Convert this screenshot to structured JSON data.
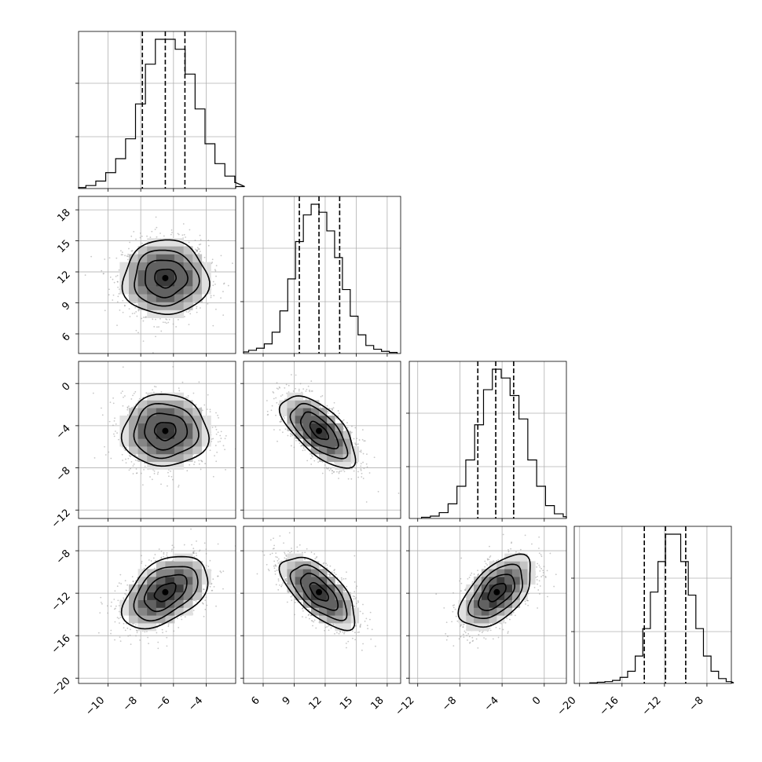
{
  "chart_data": {
    "type": "corner",
    "title": "",
    "parameters": [
      {
        "index": 0,
        "mean": -6.5,
        "sigma": 1.3,
        "range": [
          -11.8,
          -2.2
        ],
        "ticks": [
          -10,
          -8,
          -6,
          -4
        ],
        "tick_labels": [
          "−10",
          "−8",
          "−6",
          "−4"
        ],
        "quantiles": [
          -7.9,
          -6.5,
          -5.3
        ]
      },
      {
        "index": 1,
        "mean": 11.4,
        "sigma": 1.8,
        "range": [
          4.1,
          19.3
        ],
        "ticks": [
          6,
          9,
          12,
          15,
          18
        ],
        "tick_labels": [
          "6",
          "9",
          "12",
          "15",
          "18"
        ],
        "quantiles": [
          9.5,
          11.4,
          13.4
        ]
      },
      {
        "index": 2,
        "mean": -4.5,
        "sigma": 1.7,
        "range": [
          -12.8,
          2.1
        ],
        "ticks": [
          -12,
          -8,
          -4,
          0
        ],
        "tick_labels": [
          "−12",
          "−8",
          "−4",
          "0"
        ],
        "quantiles": [
          -6.3,
          -4.6,
          -2.9
        ]
      },
      {
        "index": 3,
        "mean": -11.9,
        "sigma": 1.7,
        "range": [
          -20.5,
          -5.7
        ],
        "ticks": [
          -20,
          -16,
          -12,
          -8
        ],
        "tick_labels": [
          "−20",
          "−16",
          "−12",
          "−8"
        ],
        "quantiles": [
          -13.9,
          -11.9,
          -10.0
        ]
      }
    ],
    "histograms": [
      {
        "param": 0,
        "counts": [
          2,
          6,
          15,
          32,
          60,
          100,
          170,
          250,
          300,
          300,
          280,
          230,
          160,
          90,
          50,
          25,
          12,
          4
        ]
      },
      {
        "param": 1,
        "counts": [
          3,
          6,
          10,
          18,
          40,
          80,
          140,
          210,
          260,
          280,
          265,
          230,
          180,
          120,
          70,
          35,
          15,
          8,
          4,
          2
        ]
      },
      {
        "param": 2,
        "counts": [
          2,
          4,
          10,
          25,
          55,
          100,
          160,
          220,
          255,
          240,
          210,
          170,
          100,
          55,
          22,
          8,
          3
        ]
      },
      {
        "param": 3,
        "counts": [
          1,
          2,
          3,
          5,
          10,
          20,
          45,
          90,
          150,
          200,
          245,
          245,
          200,
          145,
          90,
          45,
          20,
          8,
          3,
          1
        ]
      }
    ],
    "correlations": [
      {
        "x": 0,
        "y": 1,
        "rho": 0.0
      },
      {
        "x": 0,
        "y": 2,
        "rho": 0.0
      },
      {
        "x": 1,
        "y": 2,
        "rho": -0.65
      },
      {
        "x": 0,
        "y": 3,
        "rho": 0.45
      },
      {
        "x": 1,
        "y": 3,
        "rho": -0.65
      },
      {
        "x": 2,
        "y": 3,
        "rho": 0.55
      }
    ],
    "contour_levels": [
      0.5,
      1.0,
      1.5,
      2.0
    ],
    "grid": true,
    "legend": "none"
  }
}
